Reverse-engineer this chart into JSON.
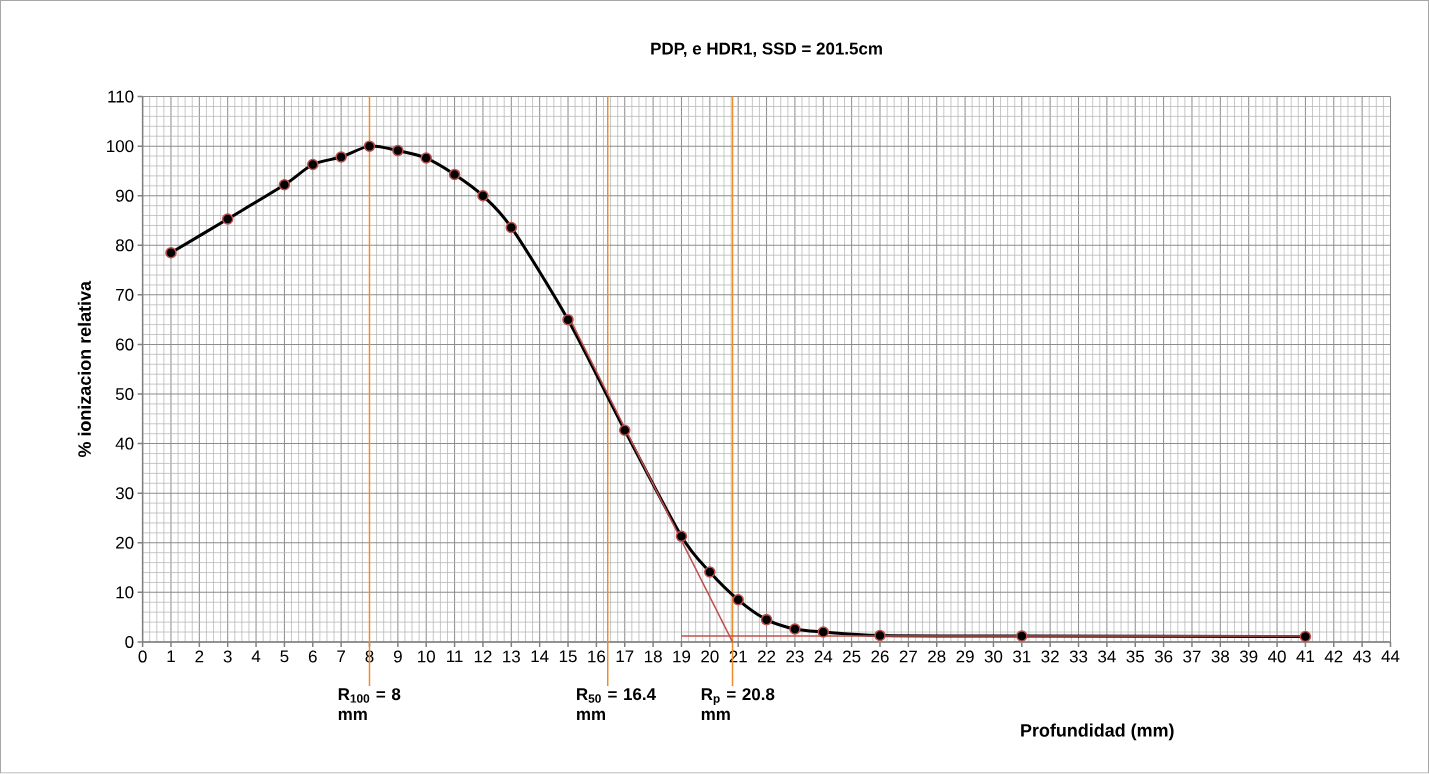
{
  "chart_data": {
    "type": "line",
    "title": "PDP, e HDR1, SSD = 201.5cm",
    "xlabel": "Profundidad  (mm)",
    "ylabel": "% ionizacion relativa",
    "x": [
      1,
      3,
      5,
      6,
      7,
      8,
      9,
      10,
      11,
      12,
      13,
      15,
      17,
      19,
      20,
      21,
      22,
      23,
      24,
      26,
      31,
      41
    ],
    "series": [
      {
        "color": "#000000",
        "values": [
          78.5,
          85.3,
          92.2,
          96.3,
          97.8,
          100,
          99.1,
          97.6,
          94.3,
          90,
          83.6,
          65,
          42.7,
          21.3,
          14.1,
          8.5,
          4.5,
          2.6,
          2,
          1.3,
          1.2,
          1.1
        ]
      },
      {
        "type": "line",
        "marker": "none",
        "color": "#c0504d",
        "x": [
          15,
          20.8
        ],
        "values": [
          65.9,
          0
        ]
      },
      {
        "type": "line",
        "marker": "none",
        "color": "#c0504d",
        "x": [
          19,
          41
        ],
        "values": [
          1.2,
          1.2
        ]
      }
    ],
    "ref_lines": [
      {
        "axis": "x",
        "value": 8,
        "label": "R$_{100}$ = 8 mm",
        "color": "#f08c28"
      },
      {
        "axis": "x",
        "value": 16.4,
        "label": "R$_{50}$ = 16.4 mm",
        "color": "#f08c28"
      },
      {
        "axis": "x",
        "value": 20.8,
        "label": "R$_{p}$ = 20.8 mm",
        "color": "#f08c28"
      }
    ],
    "xlim": [
      0,
      44
    ],
    "ylim": [
      0,
      110
    ],
    "xticks": [
      0,
      1,
      2,
      3,
      4,
      5,
      6,
      7,
      8,
      9,
      10,
      11,
      12,
      13,
      14,
      15,
      16,
      17,
      18,
      19,
      20,
      21,
      22,
      23,
      24,
      25,
      26,
      27,
      28,
      29,
      30,
      31,
      32,
      33,
      34,
      35,
      36,
      37,
      38,
      39,
      40,
      41,
      42,
      43,
      44
    ],
    "yticks": [
      0,
      10,
      20,
      30,
      40,
      50,
      60,
      70,
      80,
      90,
      100,
      110
    ],
    "grid": true,
    "legend": false,
    "marker": "circle",
    "line_style": "solid"
  }
}
